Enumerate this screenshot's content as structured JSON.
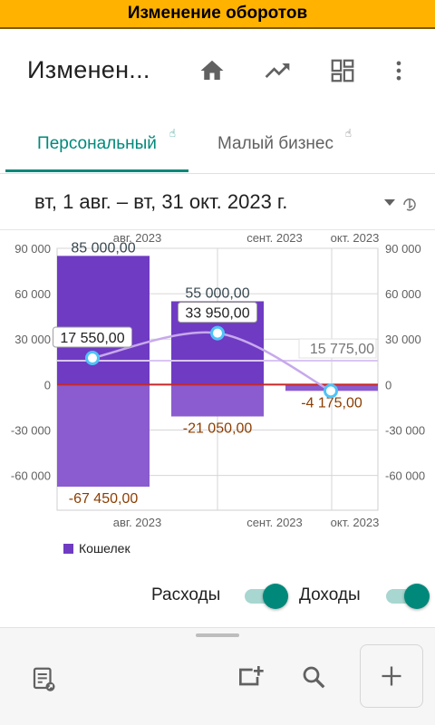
{
  "window": {
    "title": "Изменение оборотов"
  },
  "appbar": {
    "title": "Изменен...",
    "icons": [
      "home-icon",
      "trending-up-icon",
      "dashboard-grid-icon",
      "more-vert-icon"
    ]
  },
  "tabs": [
    {
      "label": "Персональный",
      "active": true
    },
    {
      "label": "Малый бизнес",
      "active": false
    }
  ],
  "date_range": {
    "label": "вт, 1 авг. – вт, 31 окт. 2023 г."
  },
  "chart_data": {
    "type": "bar",
    "categories": [
      "авг. 2023",
      "сент. 2023",
      "окт. 2023"
    ],
    "series": [
      {
        "name": "Кошелек",
        "kind": "income",
        "values": [
          85000,
          55000,
          0
        ],
        "labels": [
          "85 000,00",
          "55 000,00",
          ""
        ]
      },
      {
        "name": "Кошелек",
        "kind": "expense",
        "values": [
          -67450,
          -21050,
          -4175
        ],
        "labels": [
          "-67 450,00",
          "-21 050,00",
          "-4 175,00"
        ]
      },
      {
        "name": "Кошелек",
        "kind": "net_line",
        "values": [
          17550,
          33950,
          -4175
        ],
        "labels": [
          "17 550,00",
          "33 950,00",
          ""
        ]
      }
    ],
    "average": {
      "value": 15775,
      "label": "15 775,00"
    },
    "y_ticks": [
      90000,
      60000,
      30000,
      0,
      -30000,
      -60000
    ],
    "y_tick_labels": [
      "90 000",
      "60 000",
      "30 000",
      "0",
      "-30 000",
      "-60 000"
    ],
    "ylim": [
      -83000,
      90000
    ],
    "grid": true,
    "legend": {
      "label": "Кошелек",
      "position": "bottom-left"
    },
    "colors": {
      "income": "#6f3bc3",
      "expense": "#8a5ccf",
      "line": "#c7a9ec",
      "zero": "#c62828",
      "average": "#d9c6f2"
    }
  },
  "toggles": [
    {
      "label": "Расходы",
      "on": true
    },
    {
      "label": "Доходы",
      "on": true
    }
  ],
  "bottom_bar": {
    "icons": [
      "report-icon",
      "add-window-icon",
      "search-icon",
      "add-icon"
    ]
  },
  "colors": {
    "accent": "#00897b",
    "title_bar": "#ffb300"
  }
}
